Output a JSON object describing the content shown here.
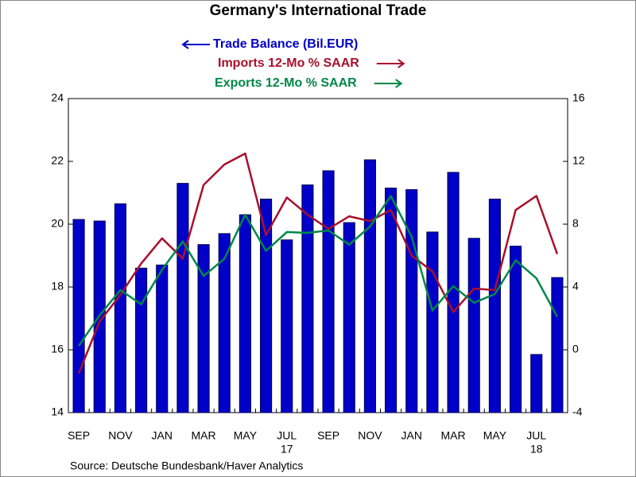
{
  "chart_data": {
    "type": "bar-line",
    "title": "Germany's International Trade",
    "source": "Source:  Deutsche Bundesbank/Haver Analytics",
    "categories": [
      "SEP",
      null,
      "NOV",
      null,
      "JAN",
      null,
      "MAR",
      null,
      "MAY",
      null,
      "JUL",
      null,
      "SEP",
      null,
      "NOV",
      null,
      "JAN",
      null,
      "MAR",
      null,
      "MAY",
      null,
      "JUL",
      null
    ],
    "category_years": [
      null,
      null,
      null,
      null,
      null,
      null,
      null,
      null,
      null,
      null,
      "17",
      null,
      null,
      null,
      null,
      null,
      null,
      null,
      null,
      null,
      null,
      null,
      "18",
      null
    ],
    "series": [
      {
        "name": "Trade Balance (Bil.EUR)",
        "type": "bar",
        "axis": "y",
        "color": "#0000c8",
        "legend_arrow": "left",
        "values": [
          20.15,
          20.1,
          20.65,
          18.6,
          18.7,
          21.3,
          19.35,
          19.7,
          20.3,
          20.8,
          19.5,
          21.25,
          21.7,
          20.05,
          22.05,
          21.15,
          21.1,
          19.75,
          21.65,
          19.55,
          20.8,
          19.3,
          15.85,
          18.3
        ]
      },
      {
        "name": "Imports 12-Mo % SAAR",
        "type": "line",
        "axis": "y2",
        "color": "#a8102c",
        "legend_arrow": "right",
        "values": [
          -1.5,
          1.8,
          3.5,
          5.5,
          7.1,
          5.8,
          10.5,
          11.8,
          12.5,
          7.3,
          9.7,
          8.6,
          7.7,
          8.5,
          8.2,
          8.9,
          6.0,
          5.0,
          2.4,
          3.9,
          3.8,
          8.9,
          9.8,
          6.1
        ]
      },
      {
        "name": "Exports 12-Mo % SAAR",
        "type": "line",
        "axis": "y2",
        "color": "#008848",
        "legend_arrow": "right",
        "values": [
          0.25,
          2.2,
          3.8,
          2.9,
          5.1,
          6.9,
          4.7,
          5.8,
          8.6,
          6.3,
          7.5,
          7.45,
          7.6,
          6.7,
          7.85,
          9.8,
          7.2,
          2.5,
          4.05,
          3.0,
          3.55,
          5.7,
          4.55,
          2.1
        ]
      }
    ],
    "ylim": [
      14,
      24
    ],
    "yticks": [
      14,
      16,
      18,
      20,
      22,
      24
    ],
    "y2lim": [
      -4,
      16
    ],
    "y2ticks": [
      -4,
      0,
      4,
      8,
      12,
      16
    ],
    "grid": false
  }
}
